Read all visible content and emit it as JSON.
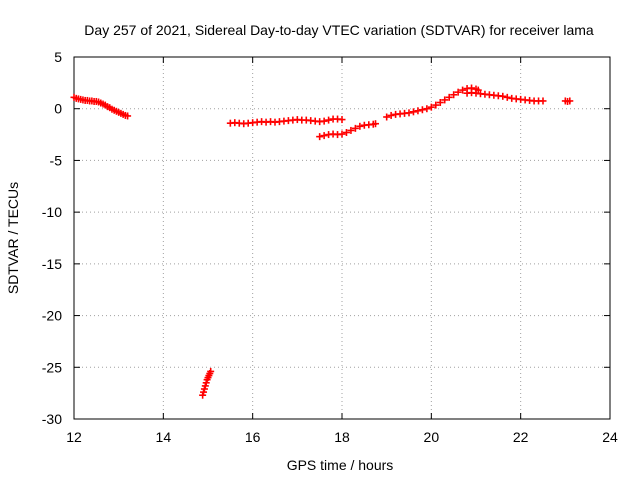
{
  "chart_data": {
    "type": "scatter",
    "title": "Day 257 of 2021, Sidereal Day-to-day VTEC variation (SDTVAR) for receiver lama",
    "xlabel": "GPS time / hours",
    "ylabel": "SDTVAR / TECUs",
    "xlim": [
      12,
      24
    ],
    "ylim": [
      -30,
      5
    ],
    "xticks": [
      12,
      14,
      16,
      18,
      20,
      22,
      24
    ],
    "yticks": [
      5,
      0,
      -5,
      -10,
      -15,
      -20,
      -25,
      -30
    ],
    "grid": true,
    "marker": "plus",
    "color": "#ff0000",
    "series": [
      {
        "name": "SDTVAR",
        "points": [
          [
            12.0,
            1.1
          ],
          [
            12.05,
            1.0
          ],
          [
            12.1,
            0.95
          ],
          [
            12.15,
            0.9
          ],
          [
            12.2,
            0.85
          ],
          [
            12.25,
            0.8
          ],
          [
            12.3,
            0.8
          ],
          [
            12.35,
            0.75
          ],
          [
            12.4,
            0.75
          ],
          [
            12.45,
            0.7
          ],
          [
            12.5,
            0.7
          ],
          [
            12.55,
            0.65
          ],
          [
            12.6,
            0.55
          ],
          [
            12.65,
            0.45
          ],
          [
            12.7,
            0.35
          ],
          [
            12.75,
            0.2
          ],
          [
            12.8,
            0.1
          ],
          [
            12.85,
            -0.05
          ],
          [
            12.9,
            -0.15
          ],
          [
            12.95,
            -0.25
          ],
          [
            13.0,
            -0.35
          ],
          [
            13.05,
            -0.45
          ],
          [
            13.1,
            -0.55
          ],
          [
            13.15,
            -0.65
          ],
          [
            13.2,
            -0.7
          ],
          [
            14.88,
            -27.7
          ],
          [
            14.9,
            -27.4
          ],
          [
            14.92,
            -27.1
          ],
          [
            14.94,
            -26.8
          ],
          [
            14.96,
            -26.5
          ],
          [
            14.98,
            -26.2
          ],
          [
            15.0,
            -26.0
          ],
          [
            15.02,
            -25.8
          ],
          [
            15.04,
            -25.6
          ],
          [
            15.06,
            -25.4
          ],
          [
            15.5,
            -1.4
          ],
          [
            15.6,
            -1.35
          ],
          [
            15.7,
            -1.4
          ],
          [
            15.8,
            -1.45
          ],
          [
            15.9,
            -1.4
          ],
          [
            16.0,
            -1.35
          ],
          [
            16.1,
            -1.3
          ],
          [
            16.2,
            -1.25
          ],
          [
            16.3,
            -1.3
          ],
          [
            16.4,
            -1.25
          ],
          [
            16.5,
            -1.3
          ],
          [
            16.6,
            -1.25
          ],
          [
            16.7,
            -1.2
          ],
          [
            16.8,
            -1.15
          ],
          [
            16.9,
            -1.1
          ],
          [
            17.0,
            -1.05
          ],
          [
            17.1,
            -1.1
          ],
          [
            17.2,
            -1.1
          ],
          [
            17.3,
            -1.15
          ],
          [
            17.4,
            -1.2
          ],
          [
            17.5,
            -1.25
          ],
          [
            17.6,
            -1.2
          ],
          [
            17.7,
            -1.1
          ],
          [
            17.8,
            -1.0
          ],
          [
            17.9,
            -1.0
          ],
          [
            18.0,
            -1.05
          ],
          [
            17.5,
            -2.7
          ],
          [
            17.6,
            -2.6
          ],
          [
            17.7,
            -2.5
          ],
          [
            17.8,
            -2.45
          ],
          [
            17.9,
            -2.5
          ],
          [
            18.0,
            -2.45
          ],
          [
            18.1,
            -2.3
          ],
          [
            18.2,
            -2.1
          ],
          [
            18.3,
            -1.9
          ],
          [
            18.4,
            -1.7
          ],
          [
            18.5,
            -1.6
          ],
          [
            18.6,
            -1.55
          ],
          [
            18.7,
            -1.5
          ],
          [
            18.75,
            -1.45
          ],
          [
            19.0,
            -0.8
          ],
          [
            19.1,
            -0.65
          ],
          [
            19.2,
            -0.55
          ],
          [
            19.3,
            -0.5
          ],
          [
            19.4,
            -0.45
          ],
          [
            19.5,
            -0.4
          ],
          [
            19.6,
            -0.3
          ],
          [
            19.7,
            -0.2
          ],
          [
            19.8,
            -0.1
          ],
          [
            19.9,
            0.0
          ],
          [
            20.0,
            0.15
          ],
          [
            20.1,
            0.35
          ],
          [
            20.2,
            0.6
          ],
          [
            20.3,
            0.85
          ],
          [
            20.4,
            1.1
          ],
          [
            20.5,
            1.35
          ],
          [
            20.6,
            1.6
          ],
          [
            20.7,
            1.8
          ],
          [
            20.8,
            1.95
          ],
          [
            20.9,
            2.0
          ],
          [
            21.0,
            1.9
          ],
          [
            21.05,
            1.8
          ],
          [
            20.8,
            1.5
          ],
          [
            20.9,
            1.55
          ],
          [
            21.0,
            1.5
          ],
          [
            21.1,
            1.45
          ],
          [
            21.2,
            1.4
          ],
          [
            21.3,
            1.35
          ],
          [
            21.4,
            1.3
          ],
          [
            21.5,
            1.25
          ],
          [
            21.6,
            1.2
          ],
          [
            21.7,
            1.1
          ],
          [
            21.8,
            1.0
          ],
          [
            21.9,
            0.95
          ],
          [
            22.0,
            0.9
          ],
          [
            22.1,
            0.85
          ],
          [
            22.2,
            0.8
          ],
          [
            22.3,
            0.75
          ],
          [
            22.4,
            0.75
          ],
          [
            22.5,
            0.75
          ],
          [
            23.0,
            0.75
          ],
          [
            23.05,
            0.7
          ],
          [
            23.1,
            0.75
          ]
        ]
      }
    ]
  }
}
